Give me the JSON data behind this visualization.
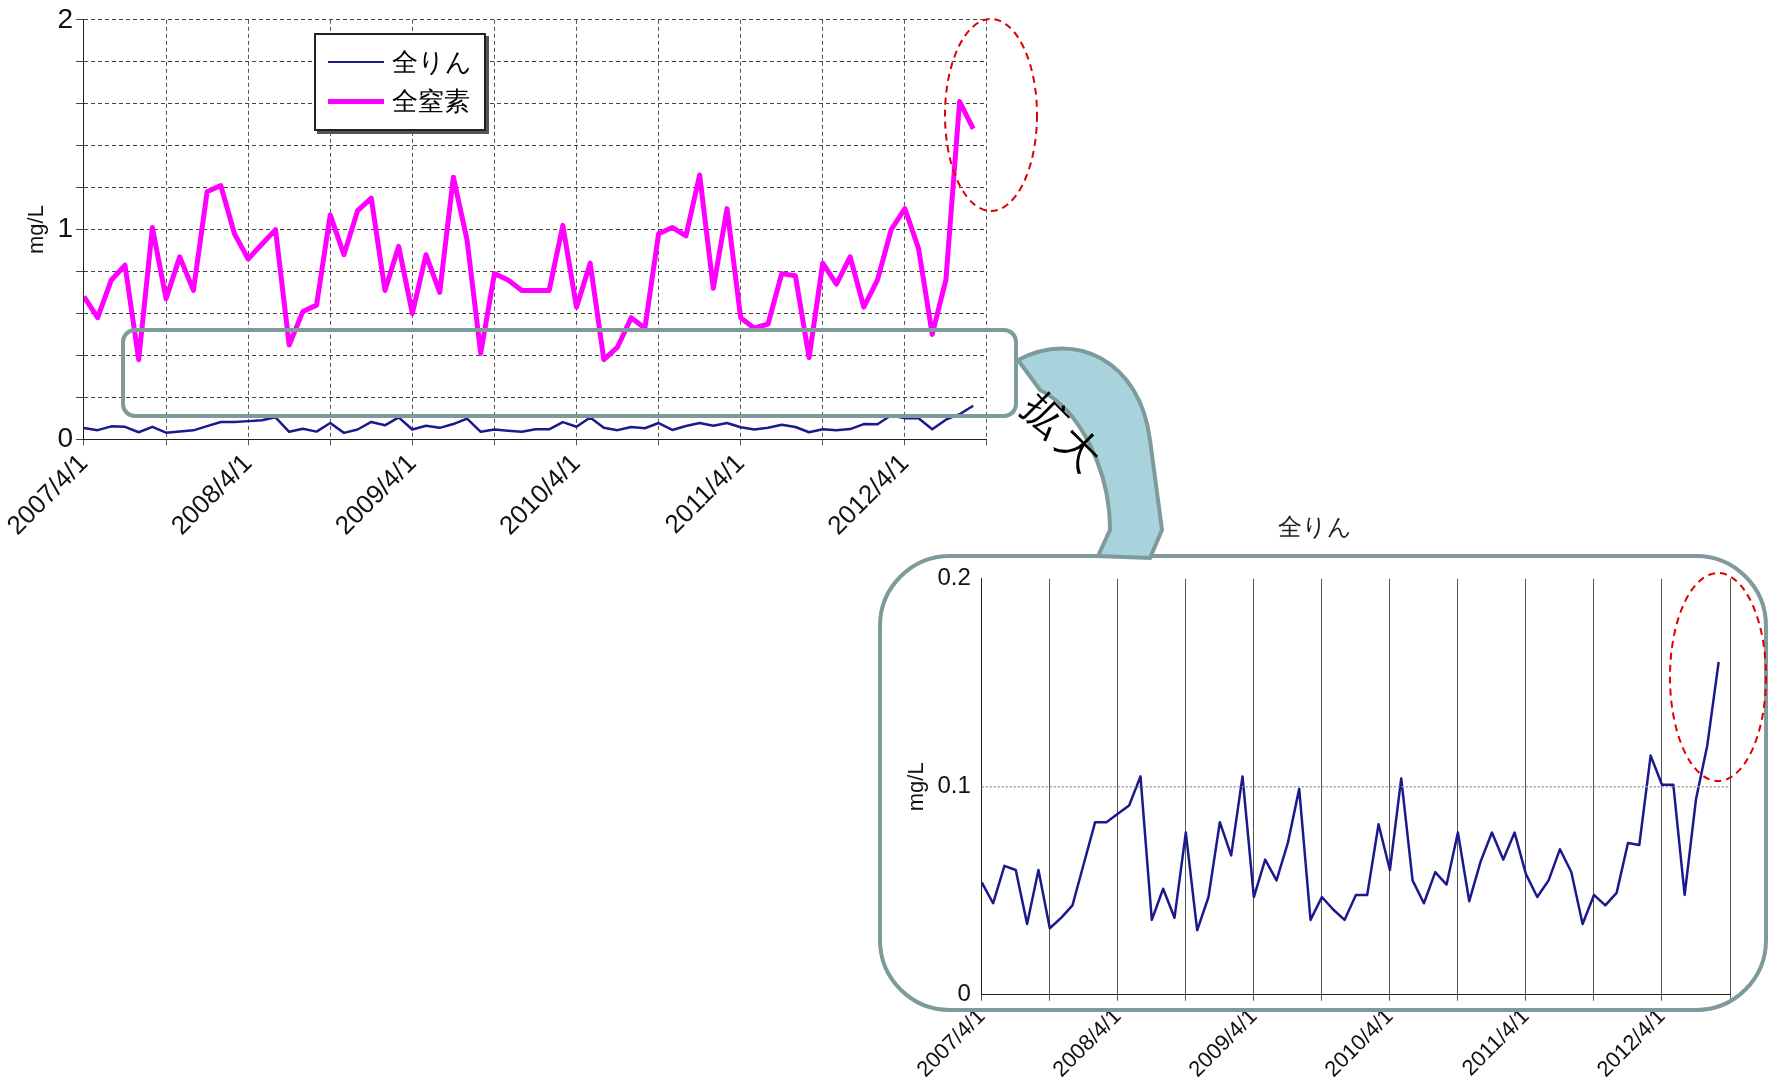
{
  "chart_data": [
    {
      "type": "line",
      "ylabel": "mg/L",
      "legend": "top left",
      "grid": true,
      "annotations": [
        "拡大"
      ],
      "x": [
        "2007-04",
        "2007-05",
        "2007-06",
        "2007-07",
        "2007-08",
        "2007-09",
        "2007-10",
        "2007-11",
        "2007-12",
        "2008-01",
        "2008-02",
        "2008-03",
        "2008-04",
        "2008-05",
        "2008-06",
        "2008-07",
        "2008-08",
        "2008-09",
        "2008-10",
        "2008-11",
        "2008-12",
        "2009-01",
        "2009-02",
        "2009-03",
        "2009-04",
        "2009-05",
        "2009-06",
        "2009-07",
        "2009-08",
        "2009-09",
        "2009-10",
        "2009-11",
        "2009-12",
        "2010-01",
        "2010-02",
        "2010-03",
        "2010-04",
        "2010-05",
        "2010-06",
        "2010-07",
        "2010-08",
        "2010-09",
        "2010-10",
        "2010-11",
        "2010-12",
        "2011-01",
        "2011-02",
        "2011-03",
        "2011-04",
        "2011-05",
        "2011-06",
        "2011-07",
        "2011-08",
        "2011-09",
        "2011-10",
        "2011-11",
        "2011-12",
        "2012-01",
        "2012-02",
        "2012-03",
        "2012-04",
        "2012-05",
        "2012-06",
        "2012-07",
        "2012-08",
        "2012-09"
      ],
      "xlim": [
        "2007-04",
        "2012-10"
      ],
      "xticks": [
        {
          "value": "2007-04",
          "label": "2007/4/1"
        },
        {
          "value": "2007-10",
          "label": null
        },
        {
          "value": "2008-04",
          "label": "2008/4/1"
        },
        {
          "value": "2008-10",
          "label": null
        },
        {
          "value": "2009-04",
          "label": "2009/4/1"
        },
        {
          "value": "2009-10",
          "label": null
        },
        {
          "value": "2010-04",
          "label": "2010/4/1"
        },
        {
          "value": "2010-10",
          "label": null
        },
        {
          "value": "2011-04",
          "label": "2011/4/1"
        },
        {
          "value": "2011-10",
          "label": null
        },
        {
          "value": "2012-04",
          "label": "2012/4/1"
        },
        {
          "value": "2012-10",
          "label": null
        }
      ],
      "ylim": [
        0,
        2
      ],
      "yticks": [
        0,
        {
          "value": 0.2,
          "label": null
        },
        {
          "value": 0.4,
          "label": null
        },
        {
          "value": 0.6,
          "label": null
        },
        {
          "value": 0.8,
          "label": null
        },
        1,
        {
          "value": 1.2,
          "label": null
        },
        {
          "value": 1.4,
          "label": null
        },
        {
          "value": 1.6,
          "label": null
        },
        {
          "value": 1.8,
          "label": null
        },
        2
      ],
      "series": [
        {
          "name": "全りん",
          "color": "#1a1a8c",
          "values": [
            0.054,
            0.044,
            0.062,
            0.06,
            0.034,
            0.06,
            0.032,
            0.037,
            0.043,
            0.063,
            0.083,
            0.083,
            0.087,
            0.091,
            0.105,
            0.036,
            0.051,
            0.037,
            0.078,
            0.031,
            0.047,
            0.083,
            0.067,
            0.105,
            0.047,
            0.065,
            0.055,
            0.073,
            0.099,
            0.036,
            0.047,
            0.041,
            0.036,
            0.048,
            0.048,
            0.082,
            0.06,
            0.104,
            0.055,
            0.044,
            0.059,
            0.053,
            0.078,
            0.045,
            0.064,
            0.078,
            0.065,
            0.078,
            0.058,
            0.047,
            0.055,
            0.07,
            0.059,
            0.034,
            0.048,
            0.043,
            0.049,
            0.073,
            0.072,
            0.115,
            0.101,
            0.101,
            0.048,
            0.094,
            0.12,
            0.16
          ]
        },
        {
          "name": "全窒素",
          "color": "#ff00ff",
          "values": [
            0.68,
            0.58,
            0.76,
            0.83,
            0.38,
            1.01,
            0.67,
            0.87,
            0.71,
            1.18,
            1.21,
            0.98,
            0.86,
            0.93,
            1.0,
            0.45,
            0.61,
            0.64,
            1.07,
            0.88,
            1.09,
            1.15,
            0.71,
            0.92,
            0.6,
            0.88,
            0.7,
            1.25,
            0.95,
            0.41,
            0.79,
            0.76,
            0.71,
            0.71,
            0.71,
            1.02,
            0.63,
            0.84,
            0.38,
            0.44,
            0.58,
            0.53,
            0.98,
            1.01,
            0.97,
            1.26,
            0.72,
            1.1,
            0.58,
            0.53,
            0.55,
            0.79,
            0.78,
            0.39,
            0.84,
            0.74,
            0.87,
            0.63,
            0.76,
            1.0,
            1.1,
            0.91,
            0.5,
            0.76,
            1.61,
            1.48
          ]
        }
      ]
    },
    {
      "type": "line",
      "title": "全りん",
      "ylabel": "mg/L",
      "grid": "x",
      "ref_lines": [
        {
          "axis": "y",
          "value": 0.1,
          "color": "#999999",
          "line_style": "dotted"
        }
      ],
      "x": [
        "2007-04",
        "2007-05",
        "2007-06",
        "2007-07",
        "2007-08",
        "2007-09",
        "2007-10",
        "2007-11",
        "2007-12",
        "2008-01",
        "2008-02",
        "2008-03",
        "2008-04",
        "2008-05",
        "2008-06",
        "2008-07",
        "2008-08",
        "2008-09",
        "2008-10",
        "2008-11",
        "2008-12",
        "2009-01",
        "2009-02",
        "2009-03",
        "2009-04",
        "2009-05",
        "2009-06",
        "2009-07",
        "2009-08",
        "2009-09",
        "2009-10",
        "2009-11",
        "2009-12",
        "2010-01",
        "2010-02",
        "2010-03",
        "2010-04",
        "2010-05",
        "2010-06",
        "2010-07",
        "2010-08",
        "2010-09",
        "2010-10",
        "2010-11",
        "2010-12",
        "2011-01",
        "2011-02",
        "2011-03",
        "2011-04",
        "2011-05",
        "2011-06",
        "2011-07",
        "2011-08",
        "2011-09",
        "2011-10",
        "2011-11",
        "2011-12",
        "2012-01",
        "2012-02",
        "2012-03",
        "2012-04",
        "2012-05",
        "2012-06",
        "2012-07",
        "2012-08",
        "2012-09"
      ],
      "xlim": [
        "2007-04",
        "2012-10"
      ],
      "xticks": [
        {
          "value": "2007-04",
          "label": "2007/4/1"
        },
        {
          "value": "2007-10",
          "label": null
        },
        {
          "value": "2008-04",
          "label": "2008/4/1"
        },
        {
          "value": "2008-10",
          "label": null
        },
        {
          "value": "2009-04",
          "label": "2009/4/1"
        },
        {
          "value": "2009-10",
          "label": null
        },
        {
          "value": "2010-04",
          "label": "2010/4/1"
        },
        {
          "value": "2010-10",
          "label": null
        },
        {
          "value": "2011-04",
          "label": "2011/4/1"
        },
        {
          "value": "2011-10",
          "label": null
        },
        {
          "value": "2012-04",
          "label": "2012/4/1"
        },
        {
          "value": "2012-10",
          "label": null
        }
      ],
      "ylim": [
        0,
        0.2
      ],
      "yticks": [
        0,
        0.1,
        0.2
      ],
      "series": [
        {
          "color": "#1a1a8c",
          "values": [
            0.054,
            0.044,
            0.062,
            0.06,
            0.034,
            0.06,
            0.032,
            0.037,
            0.043,
            0.063,
            0.083,
            0.083,
            0.087,
            0.091,
            0.105,
            0.036,
            0.051,
            0.037,
            0.078,
            0.031,
            0.047,
            0.083,
            0.067,
            0.105,
            0.047,
            0.065,
            0.055,
            0.073,
            0.099,
            0.036,
            0.047,
            0.041,
            0.036,
            0.048,
            0.048,
            0.082,
            0.06,
            0.104,
            0.055,
            0.044,
            0.059,
            0.053,
            0.078,
            0.045,
            0.064,
            0.078,
            0.065,
            0.078,
            0.058,
            0.047,
            0.055,
            0.07,
            0.059,
            0.034,
            0.048,
            0.043,
            0.049,
            0.073,
            0.072,
            0.115,
            0.101,
            0.101,
            0.048,
            0.094,
            0.12,
            0.16
          ]
        }
      ]
    }
  ]
}
